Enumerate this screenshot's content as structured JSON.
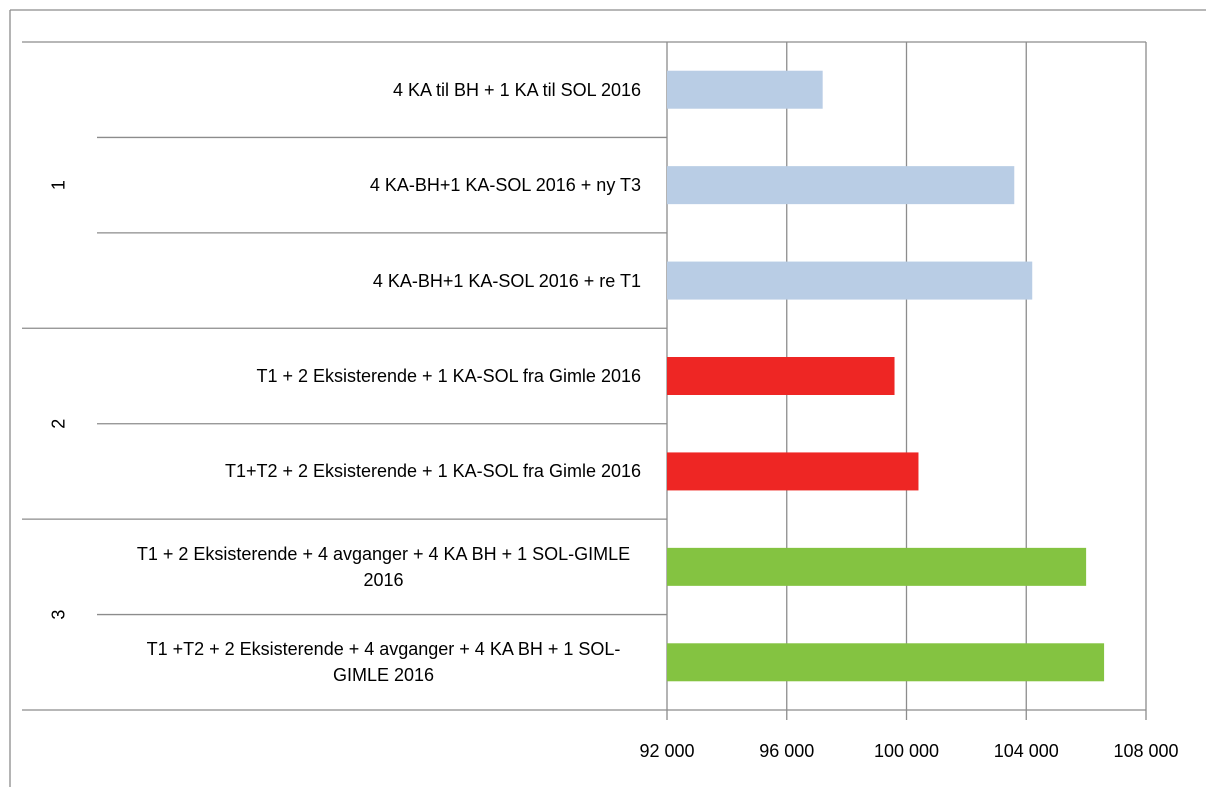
{
  "chart_data": {
    "type": "bar",
    "orientation": "horizontal",
    "groups": [
      {
        "label": "1",
        "color": "#b9cde5",
        "categories": [
          "4 KA til BH + 1 KA til SOL 2016",
          "4 KA-BH+1 KA-SOL 2016 + ny T3",
          "4 KA-BH+1 KA-SOL 2016 + re T1"
        ],
        "values": [
          97200,
          103600,
          104200
        ]
      },
      {
        "label": "2",
        "color": "#ee2624",
        "categories": [
          "T1 + 2 Eksisterende + 1 KA-SOL fra Gimle 2016",
          "T1+T2 + 2 Eksisterende + 1 KA-SOL fra Gimle 2016"
        ],
        "values": [
          99600,
          100400
        ]
      },
      {
        "label": "3",
        "color": "#84c341",
        "categories": [
          "T1 + 2 Eksisterende + 4 avganger + 4 KA BH + 1 SOL-GIMLE 2016",
          "T1 +T2 + 2 Eksisterende + 4 avganger + 4 KA BH + 1 SOL-GIMLE 2016"
        ],
        "values": [
          106000,
          106600
        ]
      }
    ],
    "xlim": [
      92000,
      108000
    ],
    "xticks": [
      {
        "value": 92000,
        "label": "92 000"
      },
      {
        "value": 96000,
        "label": "96 000"
      },
      {
        "value": 100000,
        "label": "100 000"
      },
      {
        "value": 104000,
        "label": "104 000"
      },
      {
        "value": 108000,
        "label": "108 000"
      }
    ],
    "grid": true
  }
}
